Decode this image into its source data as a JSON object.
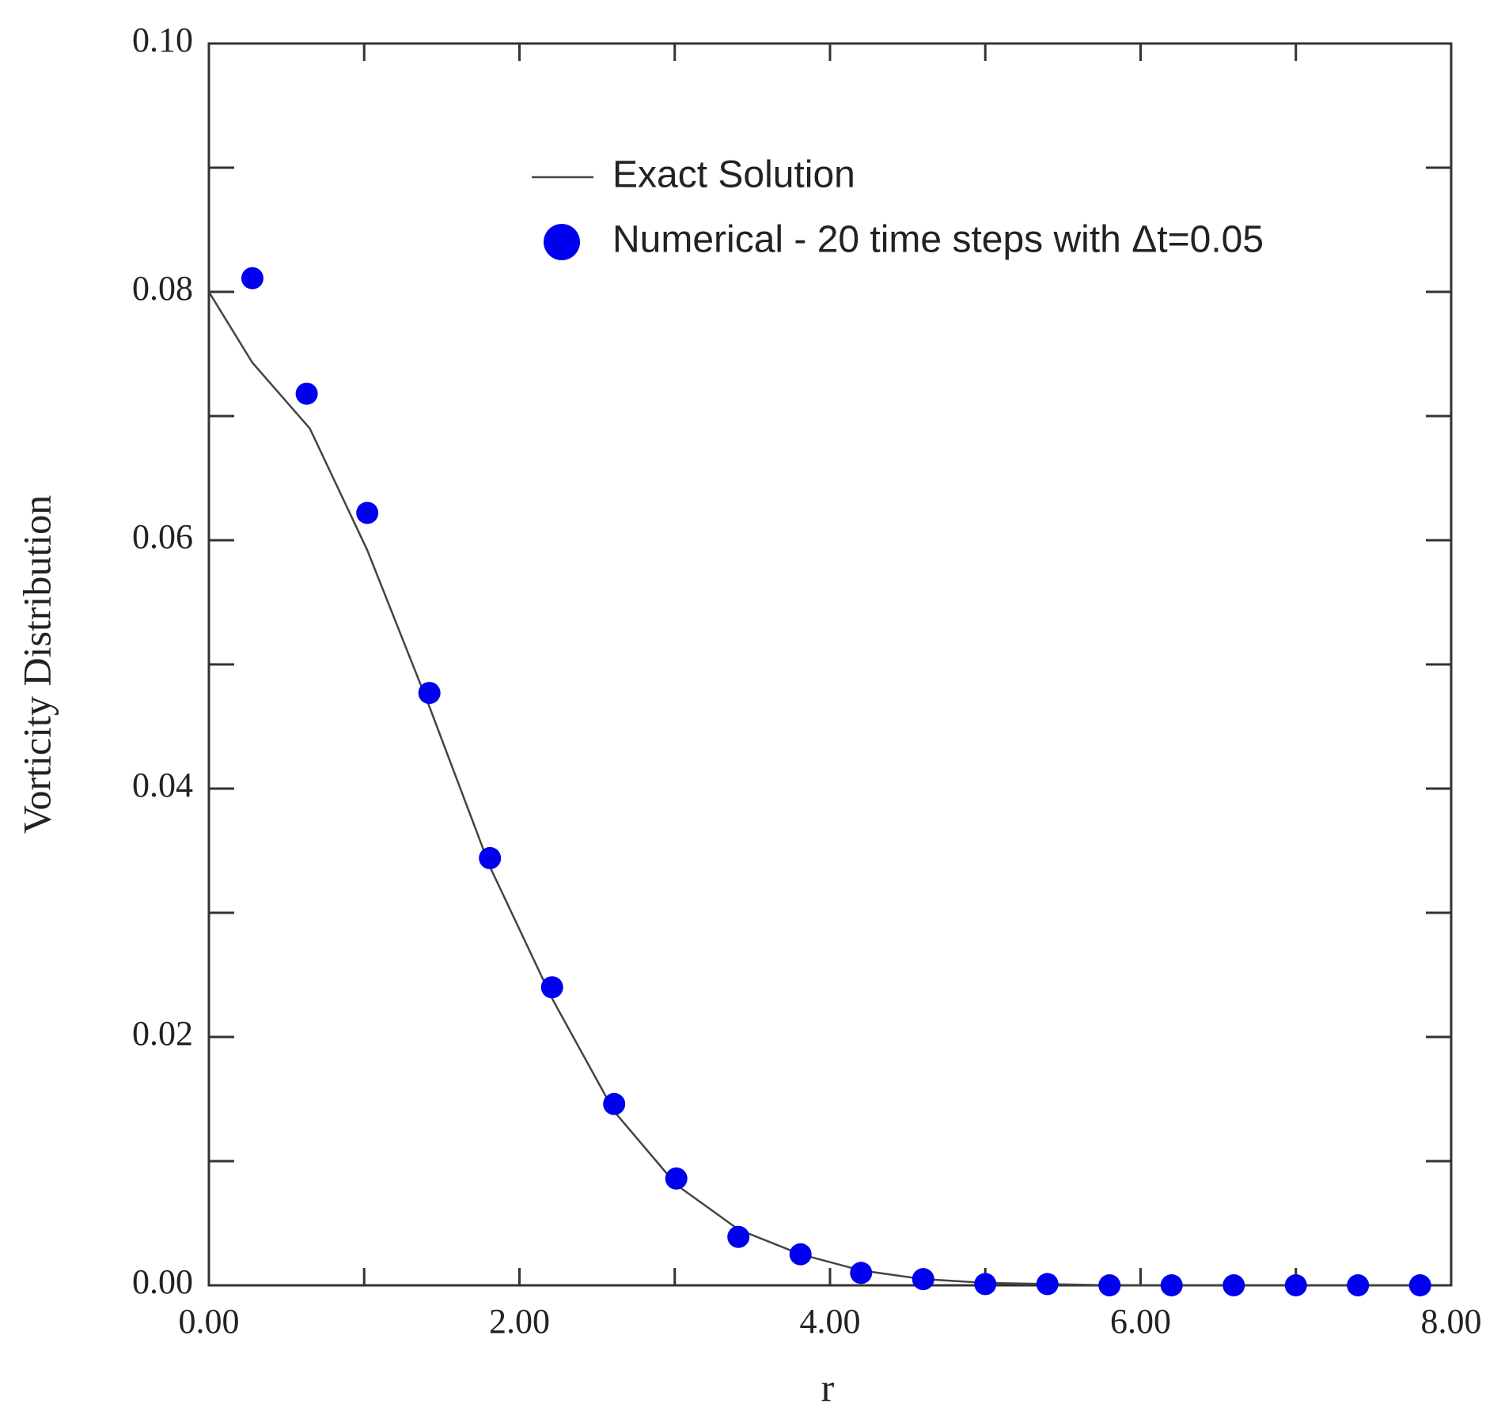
{
  "chart_data": {
    "type": "line-scatter",
    "x_label": "r",
    "y_label": "Vorticity Distribution",
    "xlim": [
      0,
      8
    ],
    "ylim": [
      0,
      0.1
    ],
    "xticks": [
      {
        "value": 0,
        "label": "0.00"
      },
      {
        "value": 2,
        "label": "2.00"
      },
      {
        "value": 4,
        "label": "4.00"
      },
      {
        "value": 6,
        "label": "6.00"
      },
      {
        "value": 8,
        "label": "8.00"
      }
    ],
    "xminorticks": [
      1,
      3,
      5,
      7
    ],
    "yticks": [
      {
        "value": 0,
        "label": "0.00"
      },
      {
        "value": 0.02,
        "label": "0.02"
      },
      {
        "value": 0.04,
        "label": "0.04"
      },
      {
        "value": 0.06,
        "label": "0.06"
      },
      {
        "value": 0.08,
        "label": "0.08"
      },
      {
        "value": 0.1,
        "label": "0.10"
      }
    ],
    "yminorticks": [
      0.01,
      0.03,
      0.05,
      0.07,
      0.09
    ],
    "series": [
      {
        "name": "Exact Solution",
        "kind": "line",
        "color": "#444444",
        "x": [
          0,
          0.28,
          0.65,
          1.02,
          1.42,
          1.81,
          2.21,
          2.61,
          3.01,
          3.41,
          3.81,
          4.2,
          4.6,
          5.0,
          5.4,
          5.8,
          6.2,
          6.6,
          7.0,
          7.4,
          7.8
        ],
        "values": [
          0.08,
          0.0743,
          0.069,
          0.0592,
          0.0466,
          0.0337,
          0.0231,
          0.014,
          0.0081,
          0.0045,
          0.0025,
          0.0012,
          0.0005,
          0.0002,
          0.0001,
          0,
          0,
          0,
          0,
          0,
          0
        ]
      },
      {
        "name": "Numerical - 20 time steps with Δt=0.05",
        "kind": "scatter",
        "color": "#0000ee",
        "x": [
          0.28,
          0.63,
          1.02,
          1.42,
          1.81,
          2.21,
          2.61,
          3.01,
          3.41,
          3.81,
          4.2,
          4.6,
          5.0,
          5.4,
          5.8,
          6.2,
          6.6,
          7.0,
          7.4,
          7.8
        ],
        "values": [
          0.0811,
          0.0718,
          0.0622,
          0.0477,
          0.0344,
          0.024,
          0.0146,
          0.0086,
          0.0039,
          0.0025,
          0.001,
          0.0005,
          0.0001,
          0.0001,
          0,
          0,
          0,
          0,
          0,
          0
        ]
      }
    ]
  }
}
